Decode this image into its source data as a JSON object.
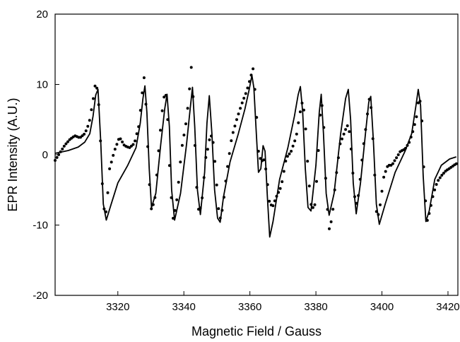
{
  "chart_data": {
    "type": "line",
    "xlabel": "Magnetic Field / Gauss",
    "ylabel": "EPR Intensity (A.U.)",
    "xlim": [
      3301,
      3423
    ],
    "ylim": [
      -20,
      20
    ],
    "xticks": [
      3320,
      3340,
      3360,
      3380,
      3400,
      3420
    ],
    "yticks": [
      -20,
      -10,
      0,
      10,
      20
    ],
    "grid": false,
    "legend": "none",
    "series": [
      {
        "style": "solid line",
        "color": "#000000",
        "x": [
          3301,
          3305,
          3308,
          3310,
          3311.5,
          3312.5,
          3313.3,
          3314.0,
          3314.8,
          3315.6,
          3316.5,
          3318,
          3320,
          3323,
          3325.5,
          3326.8,
          3327.6,
          3328.2,
          3328.8,
          3329.5,
          3330.2,
          3331.5,
          3333.0,
          3334.2,
          3334.9,
          3335.6,
          3336.3,
          3337.2,
          3339.0,
          3340.8,
          3341.9,
          3342.6,
          3343.3,
          3344.1,
          3345.0,
          3346.3,
          3347.0,
          3347.7,
          3348.5,
          3349.3,
          3350.2,
          3351.0,
          3352.0,
          3354.0,
          3356.5,
          3358.5,
          3359.8,
          3360.6,
          3361.2,
          3361.9,
          3362.6,
          3363.3,
          3364.0,
          3364.6,
          3365.3,
          3366.0,
          3367.0,
          3369.0,
          3371.5,
          3373.5,
          3374.6,
          3375.3,
          3376.0,
          3376.8,
          3377.6,
          3378.5,
          3380.0,
          3381.0,
          3381.6,
          3382.3,
          3383.1,
          3384.0,
          3385.5,
          3387.5,
          3389.0,
          3389.8,
          3390.5,
          3391.3,
          3392.2,
          3393.5,
          3395.0,
          3396.0,
          3396.6,
          3397.4,
          3398.3,
          3399.2,
          3401.0,
          3404.0,
          3407.0,
          3409.0,
          3410.3,
          3411.0,
          3411.7,
          3412.5,
          3413.3,
          3414.3,
          3416.0,
          3418.0,
          3420.5,
          3422.5
        ],
        "y": [
          0.2,
          0.6,
          1.1,
          1.8,
          3.0,
          5.5,
          8.5,
          9.3,
          2.0,
          -7.0,
          -9.3,
          -7.0,
          -4.0,
          -1.5,
          1.0,
          4.5,
          8.0,
          9.8,
          6.0,
          -2.0,
          -7.5,
          -5.5,
          1.5,
          6.5,
          8.6,
          4.0,
          -5.0,
          -9.3,
          -5.5,
          1.5,
          6.5,
          9.6,
          4.0,
          -5.0,
          -8.5,
          -2.5,
          4.5,
          8.4,
          3.0,
          -5.0,
          -9.0,
          -9.6,
          -6.0,
          -1.0,
          3.0,
          6.5,
          9.3,
          11.3,
          9.5,
          3.5,
          -2.5,
          -2.0,
          1.3,
          0.5,
          -6.0,
          -11.7,
          -9.5,
          -3.5,
          1.0,
          5.5,
          8.5,
          9.7,
          6.0,
          -2.0,
          -7.5,
          -8.0,
          -1.5,
          6.0,
          8.6,
          3.0,
          -5.5,
          -8.6,
          -5.5,
          3.0,
          8.0,
          9.3,
          5.0,
          -4.0,
          -8.4,
          -4.0,
          3.0,
          7.5,
          8.3,
          2.0,
          -7.0,
          -9.9,
          -7.0,
          -2.5,
          0.5,
          3.0,
          7.0,
          9.3,
          7.0,
          -3.0,
          -9.5,
          -8.0,
          -3.5,
          -1.5,
          -0.6,
          -0.3
        ]
      },
      {
        "style": "dotted",
        "color": "#000000",
        "x": [
          3301,
          3302.5,
          3304,
          3305.5,
          3307,
          3308.5,
          3310,
          3311.3,
          3312.4,
          3313.2,
          3314.0,
          3314.8,
          3315.6,
          3316.5,
          3317.5,
          3319,
          3320.5,
          3322,
          3323.5,
          3325,
          3326.3,
          3327.2,
          3327.9,
          3328.6,
          3329.4,
          3330.2,
          3331.3,
          3332.5,
          3333.6,
          3334.4,
          3335.1,
          3335.9,
          3336.8,
          3338.0,
          3339.3,
          3340.5,
          3341.5,
          3342.2,
          3342.9,
          3343.7,
          3344.6,
          3345.6,
          3346.6,
          3347.3,
          3348.1,
          3349.0,
          3349.9,
          3350.8,
          3351.8,
          3353.0,
          3354.5,
          3356.0,
          3357.5,
          3359.0,
          3360.2,
          3361.0,
          3361.8,
          3362.6,
          3363.4,
          3364.2,
          3365.0,
          3365.8,
          3366.8,
          3368.0,
          3369.5,
          3371.0,
          3372.5,
          3374.0,
          3375.2,
          3376.0,
          3376.8,
          3377.7,
          3378.7,
          3379.8,
          3380.8,
          3381.5,
          3382.2,
          3383.0,
          3383.9,
          3384.9,
          3386.0,
          3387.3,
          3388.5,
          3389.5,
          3390.3,
          3391.1,
          3392.0,
          3393.0,
          3394.2,
          3395.3,
          3396.1,
          3396.8,
          3397.6,
          3398.5,
          3399.5,
          3400.6,
          3401.8,
          3403.0,
          3404.3,
          3405.6,
          3407.0,
          3408.3,
          3409.5,
          3410.5,
          3411.3,
          3412.0,
          3412.8,
          3413.6,
          3414.5,
          3415.6,
          3416.8,
          3418.0,
          3419.3,
          3420.6,
          3421.8,
          3422.8
        ],
        "y": [
          -0.8,
          0.3,
          1.4,
          2.2,
          2.7,
          2.4,
          3.0,
          4.5,
          7.5,
          10.1,
          9.0,
          1.5,
          -7.5,
          -8.2,
          -2.0,
          0.6,
          2.5,
          1.3,
          1.0,
          1.6,
          4.0,
          7.8,
          11.3,
          6.5,
          -3.0,
          -8.0,
          -6.0,
          1.5,
          7.0,
          9.4,
          5.0,
          -4.5,
          -9.3,
          -6.0,
          0.8,
          4.0,
          8.0,
          12.8,
          7.5,
          -3.5,
          -8.6,
          -6.0,
          -0.5,
          1.0,
          3.0,
          1.5,
          -4.0,
          -9.5,
          -7.5,
          -2.5,
          2.5,
          5.0,
          7.2,
          9.0,
          11.0,
          12.3,
          7.5,
          0.5,
          -1.0,
          -0.6,
          -2.5,
          -6.5,
          -7.5,
          -6.0,
          -4.5,
          -0.5,
          0.5,
          2.5,
          6.0,
          7.8,
          4.5,
          -3.0,
          -7.8,
          -7.0,
          1.0,
          7.5,
          6.5,
          -4.0,
          -10.8,
          -9.0,
          -3.5,
          1.5,
          3.0,
          4.2,
          3.0,
          -2.0,
          -7.5,
          -5.5,
          0.5,
          4.5,
          8.0,
          6.5,
          -1.0,
          -9.5,
          -7.0,
          -3.0,
          -1.5,
          -1.5,
          -0.5,
          0.5,
          0.8,
          1.8,
          3.5,
          5.5,
          8.5,
          6.0,
          -3.5,
          -9.6,
          -8.0,
          -5.5,
          -3.8,
          -3.0,
          -2.3,
          -1.9,
          -1.5,
          -1.2
        ]
      }
    ]
  }
}
